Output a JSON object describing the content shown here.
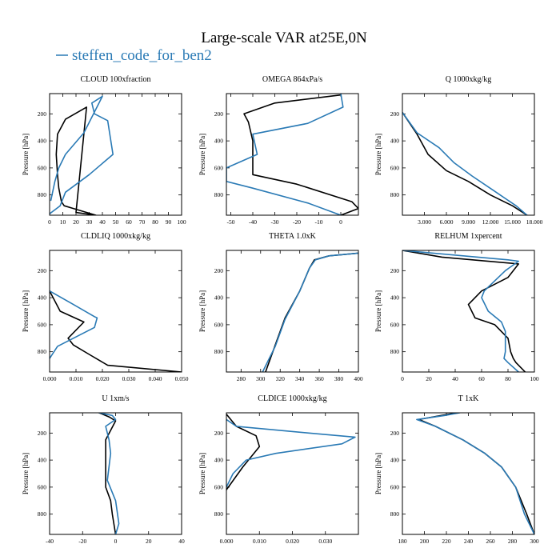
{
  "figure": {
    "title": "Large-scale VAR at25E,0N",
    "legend": {
      "label": "steffen_code_for_ben2",
      "color": "#2a7ab5"
    }
  },
  "colors": {
    "reference": "#000000",
    "series": "#2a7ab5"
  },
  "chart_data": [
    {
      "type": "line",
      "title": "CLOUD  100xfraction",
      "ylabel": "Pressure [hPa]",
      "xlim": [
        0,
        100
      ],
      "ylim": [
        950,
        50
      ],
      "y_inverted": true,
      "xticks": [
        0,
        10,
        20,
        30,
        40,
        50,
        60,
        70,
        80,
        90,
        100
      ],
      "xticklabels": [
        "0",
        "10",
        "20",
        "30",
        "40",
        "50",
        "60",
        "70",
        "80",
        "90",
        "100"
      ],
      "yticks": [
        200,
        400,
        600,
        800
      ],
      "yticklabels": [
        "200",
        "400",
        "600",
        "800"
      ],
      "series": [
        {
          "role": "reference",
          "color": "#000000",
          "x": [
            35,
            20,
            28,
            12,
            6,
            5,
            6,
            7,
            9,
            11,
            18,
            35
          ],
          "y": [
            950,
            930,
            150,
            240,
            350,
            500,
            650,
            750,
            850,
            880,
            900,
            950
          ]
        },
        {
          "role": "series",
          "color": "#2a7ab5",
          "name": "steffen_code_for_ben2",
          "x": [
            0,
            8,
            12,
            30,
            48,
            44,
            34,
            32,
            40,
            26,
            12,
            7,
            4,
            1
          ],
          "y": [
            940,
            880,
            780,
            650,
            500,
            250,
            200,
            120,
            70,
            340,
            500,
            600,
            700,
            840
          ]
        }
      ]
    },
    {
      "type": "line",
      "title": "OMEGA  864xPa/s",
      "ylabel": "Pressure [hPa]",
      "xlim": [
        -52,
        8
      ],
      "ylim": [
        950,
        50
      ],
      "y_inverted": true,
      "xticks": [
        -50,
        -40,
        -30,
        -20,
        -10,
        0
      ],
      "xticklabels": [
        "-50",
        "-40",
        "-30",
        "-20",
        "-10",
        "0"
      ],
      "yticks": [
        200,
        400,
        600,
        800
      ],
      "yticklabels": [
        "200",
        "400",
        "600",
        "800"
      ],
      "series": [
        {
          "role": "reference",
          "color": "#000000",
          "x": [
            0,
            -30,
            -44,
            -42,
            -40,
            -40,
            -20,
            5,
            8,
            0
          ],
          "y": [
            60,
            120,
            200,
            260,
            400,
            650,
            720,
            850,
            900,
            950
          ]
        },
        {
          "role": "series",
          "color": "#2a7ab5",
          "name": "steffen_code_for_ben2",
          "x": [
            0,
            1,
            -15,
            -40,
            -38,
            -52,
            -52,
            -40,
            -15,
            0
          ],
          "y": [
            50,
            150,
            270,
            350,
            500,
            600,
            700,
            750,
            860,
            950
          ]
        }
      ]
    },
    {
      "type": "line",
      "title": "Q  1000xkg/kg",
      "ylabel": "Pressure [hPa]",
      "xlim": [
        0,
        18000
      ],
      "ylim": [
        950,
        50
      ],
      "y_inverted": true,
      "xticks": [
        3000,
        6000,
        9000,
        12000,
        15000,
        18000
      ],
      "xticklabels": [
        "3.000",
        "6.000",
        "9.000",
        "12.000",
        "15.000",
        "18.000"
      ],
      "yticks": [
        200,
        400,
        600,
        800
      ],
      "yticklabels": [
        "200",
        "400",
        "600",
        "800"
      ],
      "series": [
        {
          "role": "reference",
          "color": "#000000",
          "x": [
            0,
            2000,
            3500,
            6000,
            9000,
            12000,
            15000,
            17000
          ],
          "y": [
            190,
            350,
            500,
            620,
            700,
            800,
            880,
            950
          ]
        },
        {
          "role": "series",
          "color": "#2a7ab5",
          "name": "steffen_code_for_ben2",
          "x": [
            0,
            2000,
            5000,
            7000,
            9500,
            12500,
            15500,
            17000
          ],
          "y": [
            190,
            340,
            450,
            560,
            660,
            770,
            880,
            950
          ]
        }
      ]
    },
    {
      "type": "line",
      "title": "CLDLIQ  1000xkg/kg",
      "ylabel": "Pressure [hPa]",
      "xlim": [
        0,
        0.05
      ],
      "ylim": [
        950,
        50
      ],
      "y_inverted": true,
      "xticks": [
        0,
        0.01,
        0.02,
        0.03,
        0.04,
        0.05
      ],
      "xticklabels": [
        "0.000",
        "0.010",
        "0.020",
        "0.030",
        "0.040",
        "0.050"
      ],
      "yticks": [
        200,
        400,
        600,
        800
      ],
      "yticklabels": [
        "200",
        "400",
        "600",
        "800"
      ],
      "series": [
        {
          "role": "reference",
          "color": "#000000",
          "x": [
            0,
            0.004,
            0.013,
            0.007,
            0.009,
            0.015,
            0.022,
            0.05
          ],
          "y": [
            350,
            500,
            580,
            700,
            750,
            820,
            900,
            950
          ]
        },
        {
          "role": "series",
          "color": "#2a7ab5",
          "name": "steffen_code_for_ben2",
          "x": [
            0,
            0.009,
            0.017,
            0.018,
            0.017,
            0.003,
            0
          ],
          "y": [
            350,
            450,
            540,
            550,
            620,
            760,
            850
          ]
        }
      ]
    },
    {
      "type": "line",
      "title": "THETA  1.0xK",
      "ylabel": "Pressure [hPa]",
      "xlim": [
        265,
        400
      ],
      "ylim": [
        950,
        50
      ],
      "y_inverted": true,
      "xticks": [
        280,
        300,
        320,
        340,
        360,
        380,
        400
      ],
      "xticklabels": [
        "280",
        "300",
        "320",
        "340",
        "360",
        "380",
        "400"
      ],
      "yticks": [
        200,
        400,
        600,
        800
      ],
      "yticklabels": [
        "200",
        "400",
        "600",
        "800"
      ],
      "series": [
        {
          "role": "reference",
          "color": "#000000",
          "x": [
            305,
            315,
            325,
            340,
            350,
            355,
            370,
            400
          ],
          "y": [
            950,
            750,
            550,
            350,
            180,
            120,
            90,
            70
          ]
        },
        {
          "role": "series",
          "color": "#2a7ab5",
          "name": "steffen_code_for_ben2",
          "x": [
            302,
            315,
            325,
            340,
            350,
            356,
            370,
            400
          ],
          "y": [
            950,
            760,
            560,
            350,
            180,
            120,
            90,
            70
          ]
        }
      ]
    },
    {
      "type": "line",
      "title": "RELHUM  1xpercent",
      "ylabel": "Pressure [hPa]",
      "xlim": [
        0,
        100
      ],
      "ylim": [
        950,
        50
      ],
      "y_inverted": true,
      "xticks": [
        0,
        20,
        40,
        60,
        80,
        100
      ],
      "xticklabels": [
        "0",
        "20",
        "40",
        "60",
        "80",
        "100"
      ],
      "yticks": [
        200,
        400,
        600,
        800
      ],
      "yticklabels": [
        "200",
        "400",
        "600",
        "800"
      ],
      "series": [
        {
          "role": "reference",
          "color": "#000000",
          "x": [
            0,
            30,
            88,
            80,
            60,
            50,
            55,
            70,
            80,
            82,
            84,
            86,
            93
          ],
          "y": [
            50,
            100,
            150,
            250,
            350,
            450,
            550,
            600,
            700,
            800,
            850,
            880,
            950
          ]
        },
        {
          "role": "series",
          "color": "#2a7ab5",
          "name": "steffen_code_for_ben2",
          "x": [
            0,
            80,
            88,
            78,
            62,
            60,
            65,
            75,
            78,
            78,
            77,
            80,
            88
          ],
          "y": [
            50,
            120,
            130,
            200,
            350,
            400,
            500,
            580,
            650,
            800,
            850,
            880,
            950
          ]
        }
      ]
    },
    {
      "type": "line",
      "title": "U  1xm/s",
      "ylabel": "Pressure [hPa]",
      "xlim": [
        -40,
        40
      ],
      "ylim": [
        950,
        50
      ],
      "y_inverted": true,
      "xticks": [
        -40,
        -20,
        0,
        20,
        40
      ],
      "xticklabels": [
        "-40",
        "-20",
        "0",
        "20",
        "40"
      ],
      "yticks": [
        200,
        400,
        600,
        800
      ],
      "yticklabels": [
        "200",
        "400",
        "600",
        "800"
      ],
      "series": [
        {
          "role": "reference",
          "color": "#000000",
          "x": [
            -10,
            -4,
            0,
            -6,
            -6,
            -3,
            -2,
            0
          ],
          "y": [
            50,
            80,
            110,
            250,
            600,
            700,
            800,
            950
          ]
        },
        {
          "role": "series",
          "color": "#2a7ab5",
          "name": "steffen_code_for_ben2",
          "x": [
            -10,
            -2,
            0,
            -6,
            -4,
            -3,
            -5,
            0,
            2,
            0
          ],
          "y": [
            50,
            70,
            100,
            150,
            250,
            350,
            550,
            700,
            870,
            950
          ]
        }
      ]
    },
    {
      "type": "line",
      "title": "CLDICE  1000xkg/kg",
      "ylabel": "Pressure [hPa]",
      "xlim": [
        0,
        0.04
      ],
      "ylim": [
        950,
        50
      ],
      "y_inverted": true,
      "xticks": [
        0,
        0.01,
        0.02,
        0.03
      ],
      "xticklabels": [
        "0.000",
        "0.010",
        "0.020",
        "0.030"
      ],
      "yticks": [
        200,
        400,
        600,
        800
      ],
      "yticklabels": [
        "200",
        "400",
        "600",
        "800"
      ],
      "series": [
        {
          "role": "reference",
          "color": "#000000",
          "x": [
            0,
            0.003,
            0.009,
            0.01,
            0.005,
            0
          ],
          "y": [
            60,
            150,
            220,
            300,
            450,
            620
          ]
        },
        {
          "role": "series",
          "color": "#2a7ab5",
          "name": "steffen_code_for_ben2",
          "x": [
            0,
            0.003,
            0.025,
            0.039,
            0.035,
            0.015,
            0.006,
            0.002,
            0
          ],
          "y": [
            100,
            150,
            200,
            230,
            280,
            350,
            400,
            500,
            600
          ]
        }
      ]
    },
    {
      "type": "line",
      "title": "T  1xK",
      "ylabel": "Pressure [hPa]",
      "xlim": [
        180,
        300
      ],
      "ylim": [
        950,
        50
      ],
      "y_inverted": true,
      "xticks": [
        180,
        200,
        220,
        240,
        260,
        280,
        300
      ],
      "xticklabels": [
        "180",
        "200",
        "220",
        "240",
        "260",
        "280",
        "300"
      ],
      "yticks": [
        200,
        400,
        600,
        800
      ],
      "yticklabels": [
        "200",
        "400",
        "600",
        "800"
      ],
      "series": [
        {
          "role": "reference",
          "color": "#000000",
          "x": [
            230,
            215,
            195,
            210,
            235,
            255,
            270,
            283,
            293,
            300
          ],
          "y": [
            50,
            70,
            100,
            150,
            250,
            350,
            450,
            600,
            800,
            950
          ]
        },
        {
          "role": "series",
          "color": "#2a7ab5",
          "name": "steffen_code_for_ben2",
          "x": [
            232,
            218,
            193,
            210,
            235,
            255,
            270,
            283,
            291,
            300
          ],
          "y": [
            50,
            70,
            100,
            150,
            250,
            350,
            450,
            600,
            800,
            950
          ]
        }
      ]
    }
  ]
}
